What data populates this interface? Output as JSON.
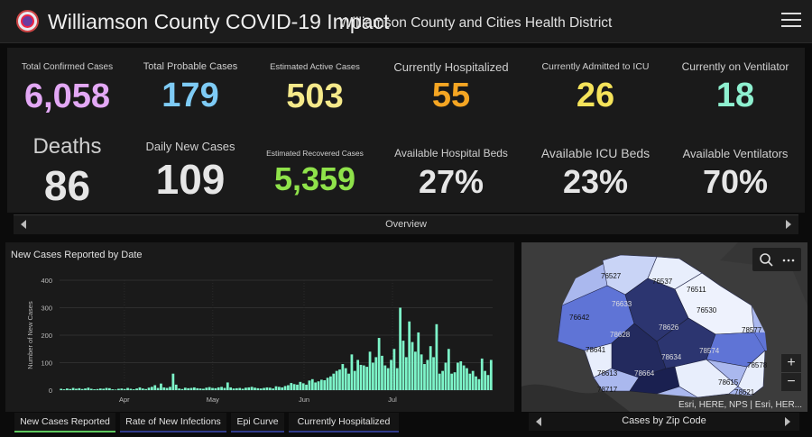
{
  "header": {
    "title": "Williamson County COVID-19 Impact",
    "subtitle": "Williamson County and Cities Health District"
  },
  "stats": [
    {
      "label": "Total Confirmed Cases",
      "value": "6,058",
      "color": "#e3a8f5"
    },
    {
      "label": "Total Probable Cases",
      "value": "179",
      "color": "#7ecbf5"
    },
    {
      "label": "Estimated Active Cases",
      "value": "503",
      "color": "#f5e98a"
    },
    {
      "label": "Currently Hospitalized",
      "value": "55",
      "color": "#f5a623"
    },
    {
      "label": "Currently Admitted to ICU",
      "value": "26",
      "color": "#f5e35a"
    },
    {
      "label": "Currently on Ventilator",
      "value": "18",
      "color": "#8ef0d0"
    },
    {
      "label": "Deaths",
      "value": "86",
      "color": "#e6e6e6"
    },
    {
      "label": "Daily New Cases",
      "value": "109",
      "color": "#e6e6e6"
    },
    {
      "label": "Estimated Recovered Cases",
      "value": "5,359",
      "color": "#8fe24a"
    },
    {
      "label": "Available Hospital Beds",
      "value": "27%",
      "color": "#e6e6e6"
    },
    {
      "label": "Available ICU Beds",
      "value": "23%",
      "color": "#e6e6e6"
    },
    {
      "label": "Available Ventilators",
      "value": "70%",
      "color": "#e6e6e6"
    }
  ],
  "overview": {
    "label": "Overview"
  },
  "chart_panel": {
    "title": "New Cases Reported by Date"
  },
  "chart_data": {
    "type": "bar",
    "title": "New Cases Reported by Date",
    "xlabel": "",
    "ylabel": "Number of New Cases",
    "ylim": [
      0,
      400
    ],
    "yticks": [
      0,
      100,
      200,
      300,
      400
    ],
    "xticks": [
      "Apr",
      "May",
      "Jun",
      "Jul"
    ],
    "bar_color": "#7df5c9",
    "x_start": "2020-03-10",
    "x_end": "2020-08-04",
    "tick_dates": [
      "2020-04-01",
      "2020-05-01",
      "2020-06-01",
      "2020-07-01"
    ],
    "values": [
      5,
      3,
      6,
      4,
      8,
      5,
      7,
      4,
      6,
      9,
      5,
      3,
      4,
      6,
      5,
      8,
      7,
      3,
      2,
      5,
      6,
      4,
      8,
      5,
      3,
      6,
      10,
      6,
      4,
      9,
      12,
      18,
      8,
      24,
      10,
      8,
      12,
      60,
      20,
      6,
      4,
      9,
      7,
      8,
      10,
      7,
      6,
      5,
      9,
      11,
      8,
      7,
      10,
      12,
      8,
      28,
      10,
      6,
      7,
      8,
      5,
      9,
      10,
      12,
      9,
      7,
      6,
      8,
      10,
      9,
      6,
      14,
      12,
      10,
      15,
      18,
      26,
      22,
      20,
      30,
      25,
      20,
      35,
      40,
      28,
      32,
      38,
      36,
      45,
      50,
      60,
      70,
      75,
      95,
      80,
      60,
      130,
      70,
      110,
      92,
      90,
      85,
      140,
      100,
      120,
      190,
      125,
      90,
      80,
      110,
      150,
      80,
      300,
      180,
      120,
      250,
      175,
      140,
      210,
      130,
      95,
      110,
      160,
      120,
      240,
      60,
      70,
      100,
      150,
      60,
      65,
      100,
      105,
      90,
      80,
      60,
      70,
      50,
      40,
      115,
      70,
      55,
      110
    ]
  },
  "tabs": [
    {
      "label": "New Cases Reported"
    },
    {
      "label": "Rate of New Infections"
    },
    {
      "label": "Epi Curve"
    },
    {
      "label": "Currently Hospitalized"
    }
  ],
  "map": {
    "zip_labels": [
      "76527",
      "76537",
      "76511",
      "76633",
      "76530",
      "76642",
      "78628",
      "78626",
      "78577",
      "78641",
      "78574",
      "78634",
      "78578",
      "78613",
      "78664",
      "78615",
      "78621",
      "78717"
    ],
    "attribution": "Esri, HERE, NPS | Esri, HER...",
    "footer_label": "Cases by Zip Code",
    "colors": {
      "light": "#e8eefc",
      "mid1": "#aab8ee",
      "mid2": "#5f74d6",
      "dark": "#2c3570",
      "darkest": "#1a2050",
      "land": "#3c3c3c",
      "water": "#2e2e2e"
    }
  }
}
